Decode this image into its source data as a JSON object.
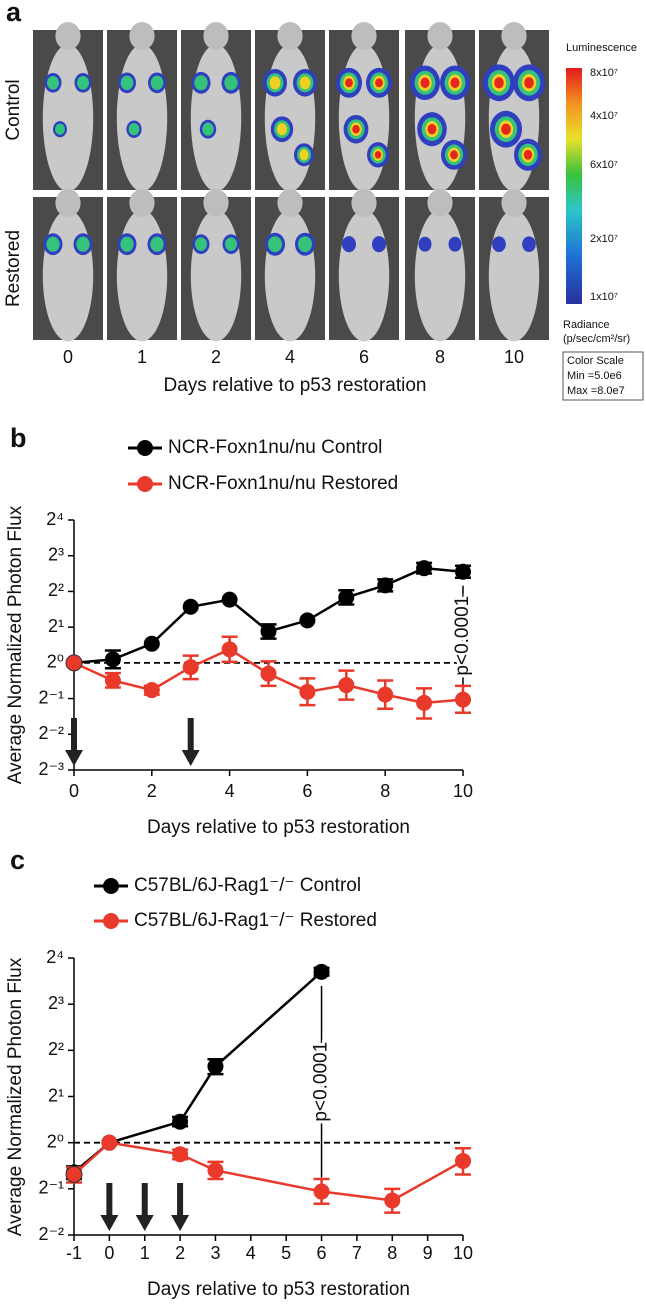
{
  "panel_a": {
    "label": "a",
    "rows": [
      "Control",
      "Restored"
    ],
    "days": [
      "0",
      "1",
      "2",
      "4",
      "6",
      "8",
      "10"
    ],
    "x_label": "Days relative to p53 restoration",
    "colorbar": {
      "title": "Luminescence",
      "ticks": [
        "8x10⁷",
        "4x10⁷",
        "6x10⁷",
        "2x10⁷",
        "1x10⁷"
      ],
      "radiance_label": [
        "Radiance",
        "(p/sec/cm²/sr)"
      ],
      "scale_box": [
        "Color Scale",
        "Min =5.0e6",
        "Max =8.0e7"
      ]
    }
  },
  "chart_data": [
    {
      "type": "line",
      "panel_label": "b",
      "x": [
        0,
        1,
        2,
        3,
        4,
        5,
        6,
        7,
        8,
        9,
        10
      ],
      "series": [
        {
          "name": "NCR-Foxn1nu/nu Control",
          "color": "#000000",
          "values": [
            1,
            1.07,
            1.45,
            2.97,
            3.41,
            1.84,
            2.28,
            3.56,
            4.5,
            6.28,
            5.86
          ],
          "lower": [
            null,
            0.9,
            null,
            null,
            null,
            1.6,
            null,
            3.1,
            4.0,
            5.66,
            5.21
          ],
          "upper": [
            null,
            1.27,
            null,
            null,
            null,
            2.11,
            null,
            4.09,
            5.06,
            6.97,
            6.59
          ]
        },
        {
          "name": "NCR-Foxn1nu/nu Restored",
          "color": "#e8392a",
          "values": [
            1,
            0.71,
            0.59,
            0.92,
            1.3,
            0.81,
            0.57,
            0.65,
            0.54,
            0.46,
            0.49
          ],
          "lower": [
            null,
            0.62,
            0.54,
            0.73,
            1.02,
            0.64,
            0.44,
            0.49,
            0.41,
            0.34,
            0.38
          ],
          "upper": [
            null,
            0.82,
            0.64,
            1.15,
            1.66,
            1.03,
            0.74,
            0.86,
            0.71,
            0.61,
            0.64
          ]
        }
      ],
      "xlim": [
        0,
        10
      ],
      "xticks": [
        0,
        2,
        4,
        6,
        8,
        10
      ],
      "ylim": [
        0.125,
        16
      ],
      "log_scale": 2,
      "yticks": [
        {
          "value": 16,
          "label": "2⁴"
        },
        {
          "value": 8,
          "label": "2³"
        },
        {
          "value": 4,
          "label": "2²"
        },
        {
          "value": 2,
          "label": "2¹"
        },
        {
          "value": 1,
          "label": "2⁰"
        },
        {
          "value": 0.5,
          "label": "2⁻¹"
        },
        {
          "value": 0.25,
          "label": "2⁻²"
        },
        {
          "value": 0.125,
          "label": "2⁻³"
        }
      ],
      "y_label": "Average Normalized Photon Flux",
      "x_label": "Days relative to p53 restoration",
      "reference_line": 1,
      "arrows": [
        0,
        3
      ],
      "annotation": {
        "text": "p<0.0001",
        "x": 10
      }
    },
    {
      "type": "line",
      "panel_label": "c",
      "series": [
        {
          "name": "C57BL/6J-Rag1⁻/⁻ Control",
          "color": "#000000",
          "x": [
            -1,
            0,
            2,
            3,
            6
          ],
          "values": [
            0.64,
            1,
            1.37,
            3.14,
            13
          ],
          "lower": [
            0.58,
            null,
            1.28,
            2.8,
            12.3
          ],
          "upper": [
            0.7,
            null,
            1.47,
            3.5,
            13.8
          ]
        },
        {
          "name": "C57BL/6J-Rag1⁻/⁻ Restored",
          "color": "#e8392a",
          "x": [
            -1,
            0,
            2,
            3,
            6,
            8,
            10
          ],
          "values": [
            0.62,
            1,
            0.84,
            0.66,
            0.48,
            0.42,
            0.76
          ],
          "lower": [
            0.55,
            null,
            0.78,
            0.58,
            0.4,
            0.35,
            0.62
          ],
          "upper": [
            0.69,
            null,
            0.9,
            0.75,
            0.58,
            0.5,
            0.92
          ]
        }
      ],
      "xlim": [
        -1,
        10
      ],
      "xticks": [
        -1,
        0,
        1,
        2,
        3,
        4,
        5,
        6,
        7,
        8,
        9,
        10
      ],
      "ylim": [
        0.25,
        16
      ],
      "log_scale": 2,
      "yticks": [
        {
          "value": 16,
          "label": "2⁴"
        },
        {
          "value": 8,
          "label": "2³"
        },
        {
          "value": 4,
          "label": "2²"
        },
        {
          "value": 2,
          "label": "2¹"
        },
        {
          "value": 1,
          "label": "2⁰"
        },
        {
          "value": 0.5,
          "label": "2⁻¹"
        },
        {
          "value": 0.25,
          "label": "2⁻²"
        }
      ],
      "y_label": "Average Normalized Photon Flux",
      "x_label": "Days relative to p53 restoration",
      "reference_line": 1,
      "arrows": [
        0,
        1,
        2
      ],
      "annotation": {
        "text": "p<0.0001",
        "x": 6
      }
    }
  ]
}
